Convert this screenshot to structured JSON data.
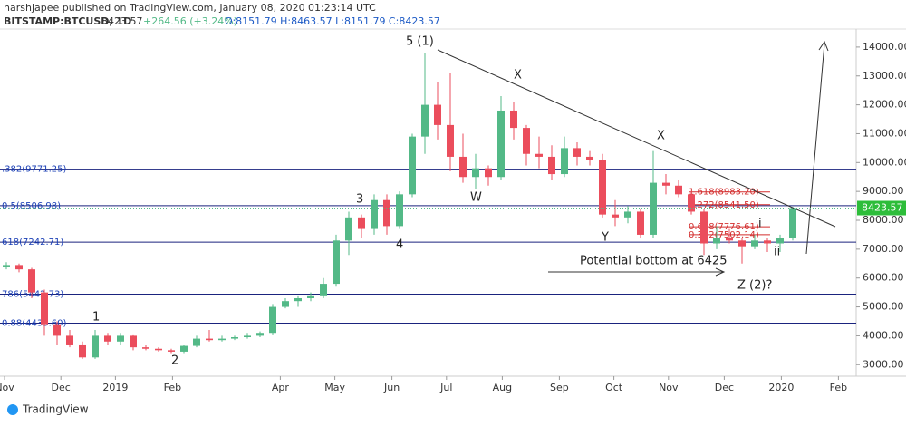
{
  "header": {
    "author": "harshjapee published on TradingView.com, January 08, 2020 01:23:14 UTC",
    "symbol": "BITSTAMP:BTCUSD, 1D",
    "price": "8423.57",
    "change": "+264.56 (+3.24%)",
    "ohlc": "O:8151.79 H:8463.57 L:8151.79 C:8423.57"
  },
  "footer": {
    "brand": "TradingView"
  },
  "chart_data": {
    "type": "candlestick",
    "categories": [
      null,
      null,
      null,
      null,
      null,
      null,
      null,
      null,
      null,
      null,
      null,
      null,
      null,
      null,
      null,
      null,
      null,
      null,
      null,
      null,
      null,
      null,
      null,
      null,
      null,
      null,
      null,
      null,
      null,
      null,
      null,
      null,
      null,
      null,
      null,
      null,
      null,
      null,
      null,
      null,
      null,
      null,
      null,
      null,
      null,
      null,
      null,
      null,
      null,
      null,
      null,
      null,
      null,
      null,
      null,
      null,
      null,
      null,
      null,
      null,
      null,
      null,
      null
    ],
    "open": [
      6400,
      6450,
      6300,
      5500,
      4400,
      4000,
      3700,
      3250,
      4000,
      3800,
      4000,
      3600,
      3550,
      3500,
      3450,
      3650,
      3900,
      3850,
      3900,
      3950,
      4000,
      4100,
      5000,
      5200,
      5300,
      5400,
      5800,
      7300,
      8100,
      7700,
      8700,
      7800,
      8900,
      10900,
      12000,
      11300,
      10200,
      9500,
      9800,
      9500,
      11800,
      11200,
      10300,
      10200,
      9600,
      10500,
      10200,
      10100,
      8200,
      8100,
      8300,
      7500,
      9300,
      9200,
      8900,
      8300,
      7200,
      7400,
      7300,
      7100,
      7300,
      7200,
      7400
    ],
    "high": [
      6550,
      6500,
      6350,
      5600,
      4500,
      4200,
      3800,
      4200,
      4100,
      4100,
      4050,
      3700,
      3600,
      3550,
      3700,
      4000,
      4200,
      4000,
      4000,
      4100,
      4150,
      5100,
      5300,
      5400,
      5500,
      6000,
      7500,
      8300,
      8200,
      8900,
      8900,
      9000,
      11000,
      13800,
      12800,
      13100,
      11000,
      10300,
      9900,
      12300,
      12100,
      11300,
      10900,
      10600,
      10900,
      10700,
      10400,
      10300,
      8700,
      8500,
      8400,
      10400,
      9600,
      9400,
      9000,
      8400,
      7800,
      7700,
      7400,
      7500,
      7400,
      7500,
      8463
    ],
    "low": [
      6300,
      6200,
      5300,
      4000,
      3700,
      3600,
      3200,
      3200,
      3700,
      3700,
      3500,
      3500,
      3450,
      3400,
      3400,
      3600,
      3800,
      3800,
      3850,
      3900,
      3950,
      4050,
      4950,
      5000,
      5200,
      5300,
      5700,
      6800,
      7400,
      7500,
      7500,
      7700,
      8800,
      10300,
      10800,
      9700,
      9300,
      9100,
      9200,
      9400,
      10800,
      9900,
      9800,
      9400,
      9500,
      9900,
      9900,
      8100,
      7800,
      7900,
      7400,
      7400,
      8900,
      8800,
      8200,
      6800,
      7000,
      7200,
      6500,
      7000,
      6900,
      6900,
      7300
    ],
    "close": [
      6450,
      6300,
      5500,
      4400,
      4000,
      3700,
      3250,
      4000,
      3800,
      4000,
      3600,
      3550,
      3500,
      3450,
      3650,
      3900,
      3850,
      3900,
      3950,
      4000,
      4100,
      5000,
      5200,
      5300,
      5400,
      5800,
      7300,
      8100,
      7700,
      8700,
      7800,
      8900,
      10900,
      12000,
      11300,
      10200,
      9500,
      9800,
      9500,
      11800,
      11200,
      10300,
      10200,
      9600,
      10500,
      10200,
      10100,
      8200,
      8100,
      8300,
      7500,
      9300,
      9200,
      8900,
      8300,
      7200,
      7400,
      7300,
      7100,
      7300,
      7200,
      7400,
      8423
    ],
    "up_color": "#53b987",
    "down_color": "#eb4d5c",
    "xlim": [
      0,
      67
    ],
    "xticks": [
      {
        "value": 0.36,
        "label": "Nov"
      },
      {
        "value": 4.8,
        "label": "Dec"
      },
      {
        "value": 9.1,
        "label": "2019"
      },
      {
        "value": 13.6,
        "label": "Feb"
      },
      {
        "value": 22.1,
        "label": "Apr"
      },
      {
        "value": 26.4,
        "label": "May"
      },
      {
        "value": 30.9,
        "label": "Jun"
      },
      {
        "value": 35.2,
        "label": "Jul"
      },
      {
        "value": 39.6,
        "label": "Aug"
      },
      {
        "value": 44.1,
        "label": "Sep"
      },
      {
        "value": 48.4,
        "label": "Oct"
      },
      {
        "value": 52.7,
        "label": "Nov"
      },
      {
        "value": 57.1,
        "label": "Dec"
      },
      {
        "value": 61.6,
        "label": "2020"
      },
      {
        "value": 66.1,
        "label": "Feb"
      }
    ],
    "ylim": [
      2600,
      14625
    ],
    "yticks": [
      {
        "value": 3000,
        "label": "3000.00"
      },
      {
        "value": 4000,
        "label": "4000.00"
      },
      {
        "value": 5000,
        "label": "5000.00"
      },
      {
        "value": 6000,
        "label": "6000.00"
      },
      {
        "value": 7000,
        "label": "7000.00"
      },
      {
        "value": 8000,
        "label": "8000.00"
      },
      {
        "value": 9000,
        "label": "9000.00"
      },
      {
        "value": 10000,
        "label": "10000.00"
      },
      {
        "value": 11000,
        "label": "11000.00"
      },
      {
        "value": 12000,
        "label": "12000.00"
      },
      {
        "value": 13000,
        "label": "13000.00"
      },
      {
        "value": 14000,
        "label": "14000.00"
      }
    ],
    "last_price": 8423.57,
    "fib_levels": [
      {
        "value": 9771.25,
        "label": ".382(9771.25)"
      },
      {
        "value": 8506.98,
        "label": "0.5(8506.98)"
      },
      {
        "value": 7242.71,
        "label": "618(7242.71)"
      },
      {
        "value": 5442.73,
        "label": "786(5442.73)"
      },
      {
        "value": 4435.6,
        "label": "0.88(4435.60)"
      }
    ],
    "fib_ext": [
      {
        "value": 8983.2,
        "label": "1.618(8983.20)"
      },
      {
        "value": 8541.5,
        "label": "1.272(8541.50)"
      },
      {
        "value": 7776.61,
        "label": "0.618(7776.61)"
      },
      {
        "value": 7502.14,
        "label": "0.382(7502.14)"
      }
    ],
    "annotations": [
      "5 (1)",
      "X",
      "X",
      "W",
      "3",
      "4",
      "Y",
      "1",
      "2",
      "Z (2)?",
      "Potential bottom at 6425",
      "i",
      "ii"
    ]
  }
}
